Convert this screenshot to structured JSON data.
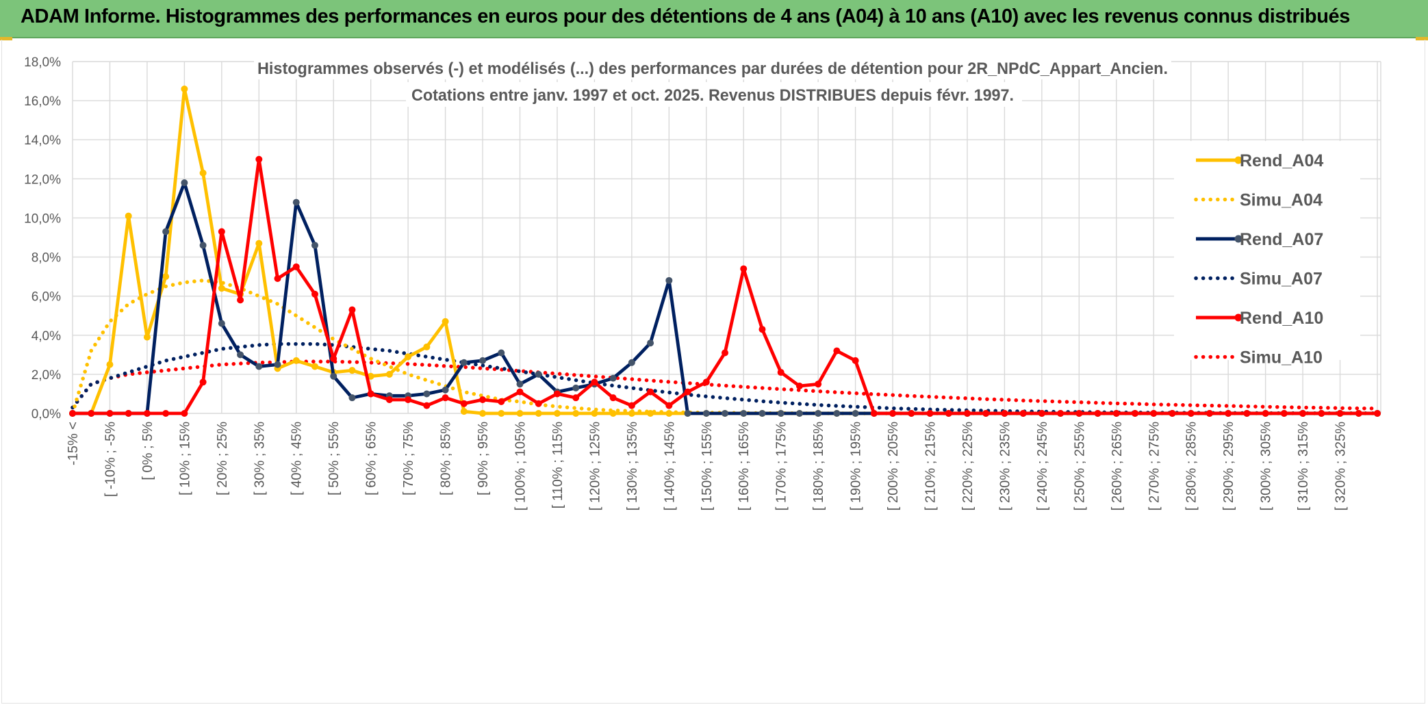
{
  "banner": {
    "title": "ADAM Informe. Histogrammes des performances en euros pour des détentions de 4 ans (A04) à 10 ans (A10) avec les revenus connus distribués"
  },
  "colors": {
    "banner_bg": "#7cc47a",
    "a04": "#FFC000",
    "a07": "#002060",
    "a10": "#FF0000",
    "marker_a07": "#44546A",
    "grid": "#d9d9d9",
    "text": "#595959"
  },
  "chart_data": {
    "type": "line",
    "title": "Histogrammes observés (-) et modélisés (...) des performances par durées de détention pour 2R_NPdC_Appart_Ancien.",
    "subtitle": "Cotations entre janv. 1997 et oct. 2025. Revenus DISTRIBUES depuis févr. 1997.",
    "xlabel": "",
    "ylabel": "",
    "ylim": [
      0,
      18
    ],
    "y_ticks": [
      "0,0%",
      "2,0%",
      "4,0%",
      "6,0%",
      "8,0%",
      "10,0%",
      "12,0%",
      "14,0%",
      "16,0%",
      "18,0%"
    ],
    "y_tick_values": [
      0,
      2,
      4,
      6,
      8,
      10,
      12,
      14,
      16,
      18
    ],
    "grid": true,
    "legend_position": "right",
    "x_tick_labels": [
      "-15% <",
      "[ -10% ; -5%",
      "[ 0% ; 5%",
      "[ 10% ; 15%",
      "[ 20% ; 25%",
      "[ 30% ; 35%",
      "[ 40% ; 45%",
      "[ 50% ; 55%",
      "[ 60% ; 65%",
      "[ 70% ; 75%",
      "[ 80% ; 85%",
      "[ 90% ; 95%",
      "[ 100% ; 105%",
      "[ 110% ; 115%",
      "[ 120% ; 125%",
      "[ 130% ; 135%",
      "[ 140% ; 145%",
      "[ 150% ; 155%",
      "[ 160% ; 165%",
      "[ 170% ; 175%",
      "[ 180% ; 185%",
      "[ 190% ; 195%",
      "[ 200% ; 205%",
      "[ 210% ; 215%",
      "[ 220% ; 225%",
      "[ 230% ; 235%",
      "[ 240% ; 245%",
      "[ 250% ; 255%",
      "[ 260% ; 265%",
      "[ 270% ; 275%",
      "[ 280% ; 285%",
      "[ 290% ; 295%",
      "[ 300% ; 305%",
      "[ 310% ; 315%",
      "[ 320% ; 325%"
    ],
    "x_tick_every": 2,
    "n_points": 71,
    "series": [
      {
        "name": "Rend_A04",
        "style": "solid",
        "color": "#FFC000",
        "marker": true,
        "values": [
          0.0,
          0.0,
          2.5,
          10.1,
          3.9,
          7.0,
          16.6,
          12.3,
          6.4,
          6.1,
          8.7,
          2.3,
          2.7,
          2.4,
          2.1,
          2.2,
          1.9,
          2.0,
          2.9,
          3.4,
          4.7,
          0.1,
          0.0,
          0.0,
          0.0,
          0.0,
          0.0,
          0.0,
          0.0,
          0.0,
          0.0,
          0.0,
          0.0,
          0.0,
          0.0,
          0.0,
          0.0,
          0.0,
          0.0,
          0.0,
          0.0,
          0.0,
          0.0,
          0.0,
          0.0,
          0.0,
          0.0,
          0.0,
          0.0,
          0.0,
          0.0,
          0.0,
          0.0,
          0.0,
          0.0,
          0.0,
          0.0,
          0.0,
          0.0,
          0.0,
          0.0,
          0.0,
          0.0,
          0.0,
          0.0,
          0.0,
          0.0,
          0.0,
          0.0,
          0.0,
          0.0
        ]
      },
      {
        "name": "Simu_A04",
        "style": "dotted",
        "color": "#FFC000",
        "marker": false,
        "values": [
          0.0,
          3.2,
          4.7,
          5.6,
          6.1,
          6.5,
          6.7,
          6.8,
          6.7,
          6.4,
          6.0,
          5.6,
          5.0,
          4.4,
          3.8,
          3.3,
          2.8,
          2.4,
          2.0,
          1.7,
          1.4,
          1.1,
          0.9,
          0.7,
          0.6,
          0.45,
          0.35,
          0.27,
          0.2,
          0.15,
          0.12,
          0.09,
          0.07,
          0.05,
          0.04,
          0.03,
          0.02,
          0.015,
          0.01,
          0.008,
          0.005,
          0.0,
          0.0,
          0.0,
          0.0,
          0.0,
          0.0,
          0.0,
          0.0,
          0.0,
          0.0,
          0.0,
          0.0,
          0.0,
          0.0,
          0.0,
          0.0,
          0.0,
          0.0,
          0.0,
          0.0,
          0.0,
          0.0,
          0.0,
          0.0,
          0.0,
          0.0,
          0.0,
          0.0,
          0.0,
          0.0
        ]
      },
      {
        "name": "Rend_A07",
        "style": "solid",
        "color": "#002060",
        "marker": true,
        "values": [
          0.0,
          0.0,
          0.0,
          0.0,
          0.0,
          9.3,
          11.8,
          8.6,
          4.6,
          3.0,
          2.4,
          2.5,
          10.8,
          8.6,
          1.9,
          0.8,
          1.0,
          0.9,
          0.9,
          1.0,
          1.2,
          2.6,
          2.7,
          3.1,
          1.5,
          2.0,
          1.1,
          1.3,
          1.5,
          1.8,
          2.6,
          3.6,
          6.8,
          0.0,
          0.0,
          0.0,
          0.0,
          0.0,
          0.0,
          0.0,
          0.0,
          0.0,
          0.0,
          0.0,
          0.0,
          0.0,
          0.0,
          0.0,
          0.0,
          0.0,
          0.0,
          0.0,
          0.0,
          0.0,
          0.0,
          0.0,
          0.0,
          0.0,
          0.0,
          0.0,
          0.0,
          0.0,
          0.0,
          0.0,
          0.0,
          0.0,
          0.0,
          0.0,
          0.0,
          0.0,
          0.0
        ]
      },
      {
        "name": "Simu_A07",
        "style": "dotted",
        "color": "#002060",
        "marker": false,
        "values": [
          0.3,
          1.5,
          1.8,
          2.1,
          2.4,
          2.7,
          2.9,
          3.1,
          3.3,
          3.4,
          3.5,
          3.55,
          3.55,
          3.55,
          3.5,
          3.4,
          3.3,
          3.2,
          3.05,
          2.9,
          2.75,
          2.6,
          2.45,
          2.3,
          2.15,
          2.0,
          1.85,
          1.7,
          1.55,
          1.42,
          1.3,
          1.18,
          1.07,
          0.96,
          0.87,
          0.78,
          0.7,
          0.62,
          0.55,
          0.49,
          0.43,
          0.38,
          0.34,
          0.3,
          0.26,
          0.23,
          0.2,
          0.18,
          0.16,
          0.14,
          0.12,
          0.1,
          0.09,
          0.08,
          0.07,
          0.06,
          0.05,
          0.045,
          0.04,
          0.035,
          0.03,
          0.025,
          0.02,
          0.018,
          0.015,
          0.013,
          0.011,
          0.01,
          0.008,
          0.007,
          0.006
        ]
      },
      {
        "name": "Rend_A10",
        "style": "solid",
        "color": "#FF0000",
        "marker": true,
        "values": [
          0.0,
          0.0,
          0.0,
          0.0,
          0.0,
          0.0,
          0.0,
          1.6,
          9.3,
          5.8,
          13.0,
          6.9,
          7.5,
          6.1,
          2.8,
          5.3,
          1.0,
          0.7,
          0.7,
          0.4,
          0.8,
          0.5,
          0.7,
          0.6,
          1.1,
          0.5,
          1.0,
          0.8,
          1.6,
          0.8,
          0.4,
          1.1,
          0.4,
          1.1,
          1.6,
          3.1,
          7.4,
          4.3,
          2.1,
          1.4,
          1.5,
          3.2,
          2.7,
          0.0,
          0.0,
          0.0,
          0.0,
          0.0,
          0.0,
          0.0,
          0.0,
          0.0,
          0.0,
          0.0,
          0.0,
          0.0,
          0.0,
          0.0,
          0.0,
          0.0,
          0.0,
          0.0,
          0.0,
          0.0,
          0.0,
          0.0,
          0.0,
          0.0,
          0.0,
          0.0,
          0.0
        ]
      },
      {
        "name": "Simu_A10",
        "style": "dotted",
        "color": "#FF0000",
        "marker": false,
        "values": [
          0.3,
          1.5,
          1.8,
          2.0,
          2.1,
          2.2,
          2.3,
          2.4,
          2.5,
          2.55,
          2.6,
          2.62,
          2.65,
          2.65,
          2.65,
          2.63,
          2.6,
          2.57,
          2.53,
          2.48,
          2.42,
          2.37,
          2.3,
          2.24,
          2.17,
          2.1,
          2.03,
          1.96,
          1.89,
          1.82,
          1.75,
          1.68,
          1.61,
          1.55,
          1.48,
          1.42,
          1.36,
          1.3,
          1.24,
          1.19,
          1.13,
          1.08,
          1.03,
          0.98,
          0.94,
          0.89,
          0.85,
          0.81,
          0.77,
          0.73,
          0.7,
          0.66,
          0.63,
          0.6,
          0.57,
          0.54,
          0.51,
          0.49,
          0.46,
          0.44,
          0.42,
          0.4,
          0.38,
          0.36,
          0.34,
          0.32,
          0.3,
          0.29,
          0.27,
          0.26,
          0.25
        ]
      }
    ]
  }
}
